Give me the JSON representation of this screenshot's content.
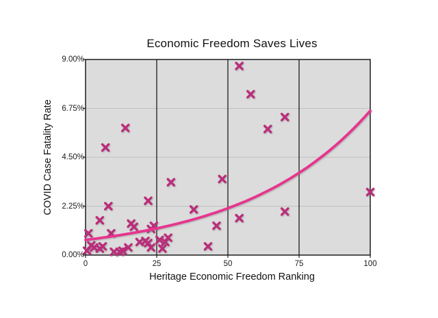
{
  "chart_data": {
    "type": "scatter",
    "title": "Economic Freedom Saves Lives",
    "xlabel": "Heritage Economic Freedom Ranking",
    "ylabel": "COVID Case Fatality Rate",
    "xlim": [
      0,
      100
    ],
    "ylim": [
      0,
      9
    ],
    "x_tick_values": [
      0,
      25,
      50,
      75,
      100
    ],
    "x_tick_labels": [
      "0",
      "25",
      "50",
      "75",
      "100"
    ],
    "y_tick_values": [
      0,
      2.25,
      4.5,
      6.75,
      9
    ],
    "y_tick_labels": [
      "0.00%",
      "2.25%",
      "4.50%",
      "6.75%",
      "9.00%"
    ],
    "grid": {
      "vertical_lines_at": [
        25,
        50,
        75
      ],
      "horizontal_lines_at": [
        2.25,
        4.5,
        6.75
      ]
    },
    "legend": "none",
    "marker_shape": "x-cross",
    "points": [
      [
        0.5,
        0.2
      ],
      [
        1,
        1.0
      ],
      [
        2,
        0.45
      ],
      [
        3,
        0.35
      ],
      [
        5,
        0.3
      ],
      [
        5,
        1.6
      ],
      [
        6,
        0.4
      ],
      [
        7,
        4.95
      ],
      [
        8,
        2.25
      ],
      [
        9,
        1.0
      ],
      [
        10,
        0.15
      ],
      [
        12,
        0.15
      ],
      [
        13,
        0.2
      ],
      [
        14,
        5.85
      ],
      [
        15,
        0.35
      ],
      [
        16,
        1.45
      ],
      [
        17,
        1.3
      ],
      [
        19,
        0.6
      ],
      [
        21,
        0.65
      ],
      [
        22,
        0.55
      ],
      [
        22,
        2.5
      ],
      [
        23,
        0.35
      ],
      [
        23,
        1.2
      ],
      [
        24,
        1.35
      ],
      [
        26,
        0.7
      ],
      [
        27,
        0.3
      ],
      [
        28,
        0.6
      ],
      [
        29,
        0.8
      ],
      [
        30,
        3.35
      ],
      [
        38,
        2.1
      ],
      [
        43,
        0.4
      ],
      [
        46,
        1.35
      ],
      [
        48,
        3.5
      ],
      [
        54,
        1.7
      ],
      [
        54,
        8.7
      ],
      [
        58,
        7.4
      ],
      [
        64,
        5.8
      ],
      [
        70,
        2.0
      ],
      [
        70,
        6.35
      ],
      [
        100,
        2.9
      ]
    ],
    "trend": {
      "shape": "exponential",
      "formula": "y = a * exp(b * x)",
      "a": 0.7,
      "b": 0.0225,
      "endpoints_pct": {
        "x0": 0.7,
        "x100": 6.6
      }
    },
    "colors": {
      "marker": "#bb2c7a",
      "trend": "#e8348e",
      "plot_bg": "#dcdcdc",
      "frame": "#1c1c1c",
      "v_grid": "#1c1c1c",
      "h_grid": "#c1c1c1",
      "text": "#111111",
      "page_bg": "#ffffff"
    }
  }
}
